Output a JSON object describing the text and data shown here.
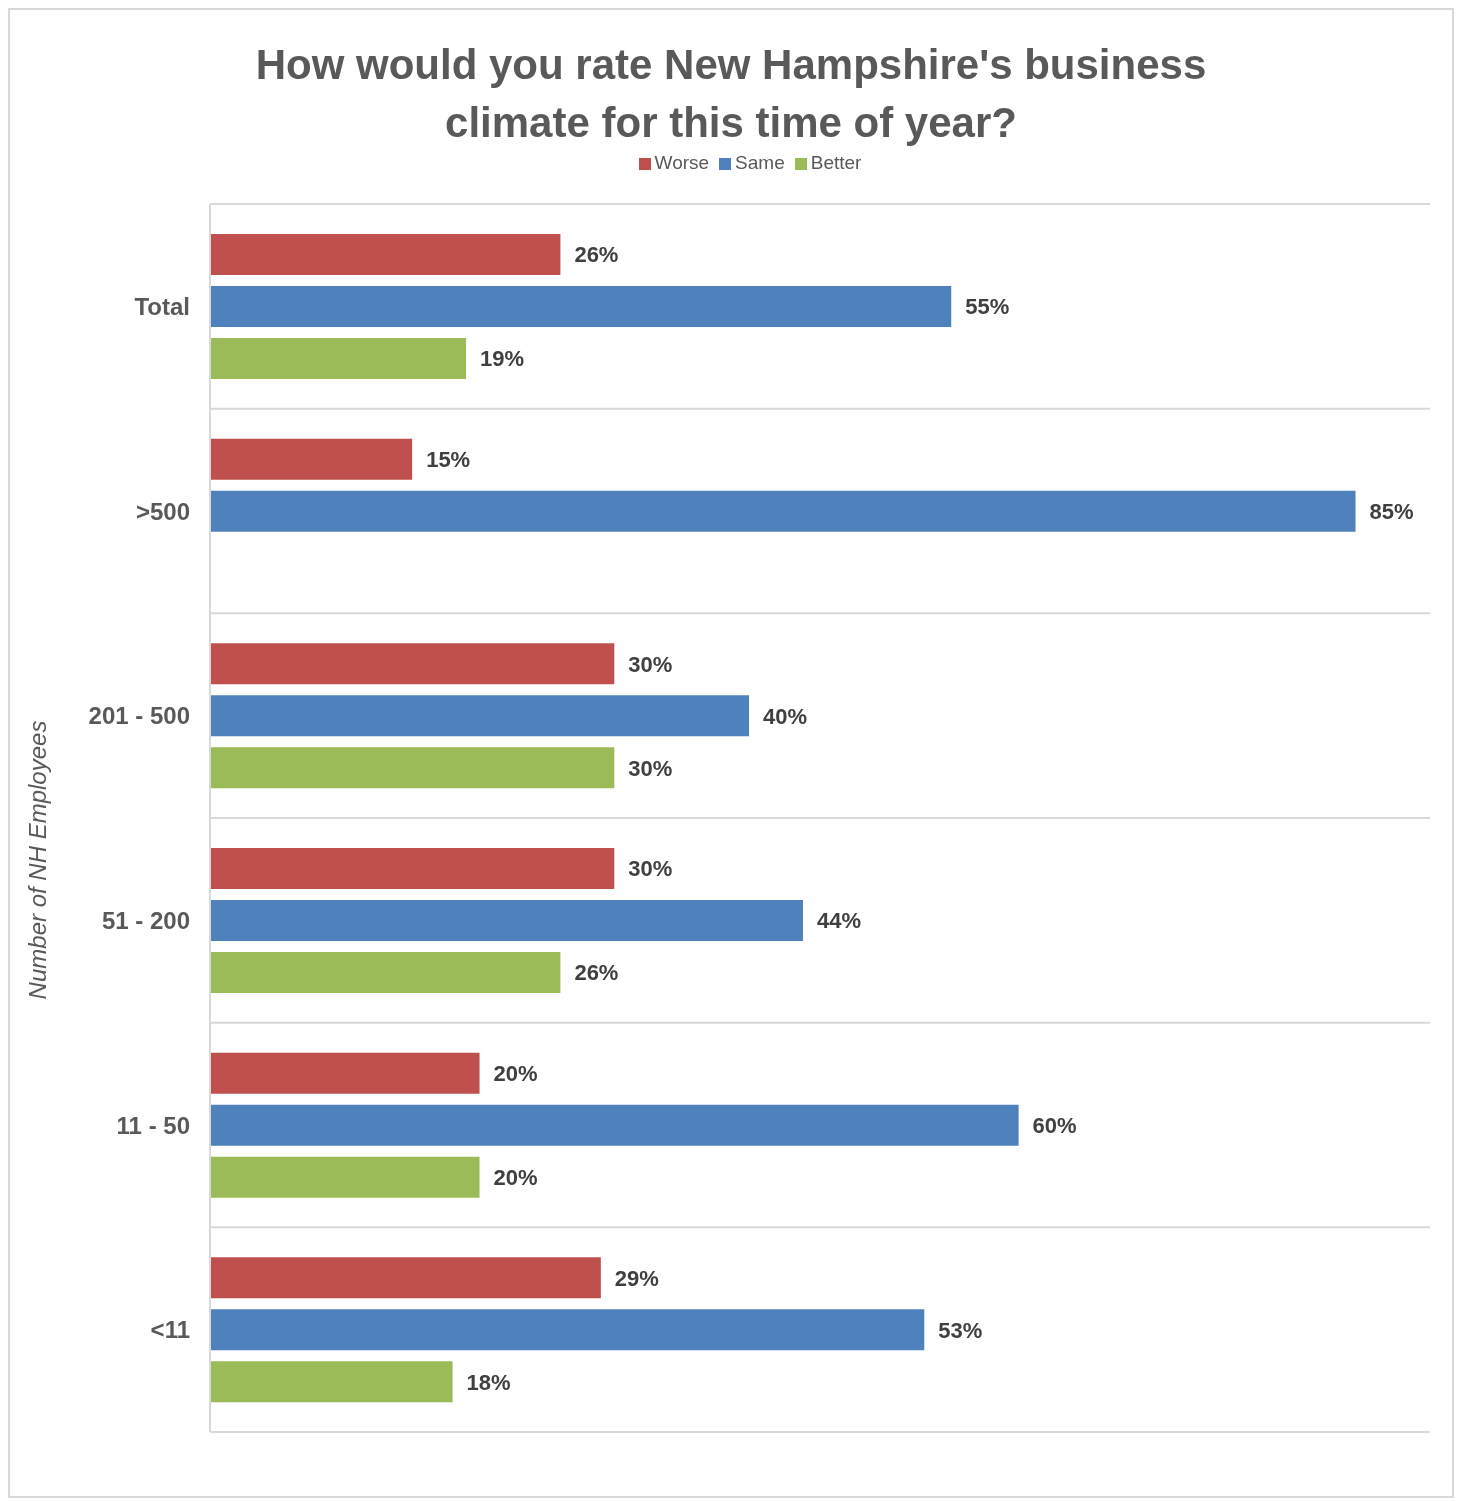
{
  "chart_data": {
    "type": "bar",
    "orientation": "horizontal",
    "title": "How would you rate New Hampshire's business climate for this time of year?",
    "ylabel": "Number of NH Employees",
    "categories": [
      "Total",
      ">500",
      "201 - 500",
      "51 - 200",
      "11 - 50",
      "<11"
    ],
    "series": [
      {
        "name": "Worse",
        "color": "#c0504d",
        "values": [
          26,
          15,
          30,
          30,
          20,
          29
        ],
        "value_labels": [
          "26%",
          "15%",
          "30%",
          "30%",
          "20%",
          "29%"
        ]
      },
      {
        "name": "Same",
        "color": "#4f81bd",
        "values": [
          55,
          85,
          40,
          44,
          60,
          53
        ],
        "value_labels": [
          "55%",
          "85%",
          "40%",
          "44%",
          "60%",
          "53%"
        ]
      },
      {
        "name": "Better",
        "color": "#9bbb59",
        "values": [
          19,
          null,
          30,
          26,
          20,
          18
        ],
        "value_labels": [
          "19%",
          null,
          "30%",
          "26%",
          "20%",
          "18%"
        ]
      }
    ],
    "legend": "top",
    "grid": "y"
  }
}
